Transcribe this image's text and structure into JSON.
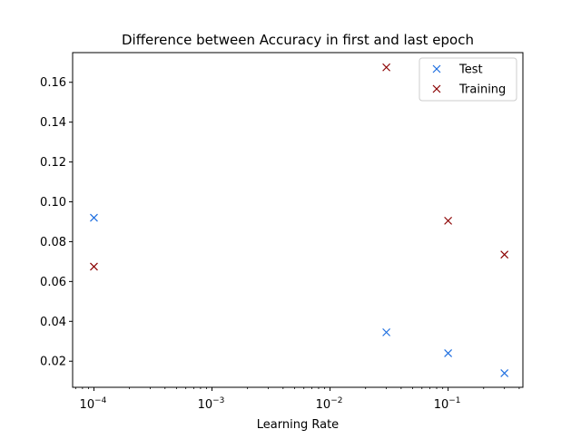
{
  "chart_data": {
    "type": "scatter",
    "title": "Difference between Accuracy in first and last epoch",
    "xlabel": "Learning Rate",
    "ylabel": "",
    "x_scale": "log",
    "xlim": [
      6.6e-05,
      0.43
    ],
    "ylim": [
      0.0069,
      0.1749
    ],
    "x_ticks": [
      {
        "value": 0.0001,
        "base": "10",
        "exp": "−4"
      },
      {
        "value": 0.001,
        "base": "10",
        "exp": "−3"
      },
      {
        "value": 0.01,
        "base": "10",
        "exp": "−2"
      },
      {
        "value": 0.1,
        "base": "10",
        "exp": "−1"
      }
    ],
    "y_ticks": [
      {
        "value": 0.02,
        "label": "0.02"
      },
      {
        "value": 0.04,
        "label": "0.04"
      },
      {
        "value": 0.06,
        "label": "0.06"
      },
      {
        "value": 0.08,
        "label": "0.08"
      },
      {
        "value": 0.1,
        "label": "0.10"
      },
      {
        "value": 0.12,
        "label": "0.12"
      },
      {
        "value": 0.14,
        "label": "0.14"
      },
      {
        "value": 0.16,
        "label": "0.16"
      }
    ],
    "grid": false,
    "legend_position": "top-right",
    "series": [
      {
        "name": "Test",
        "color": "#1f6fe0",
        "marker": "x",
        "points": [
          {
            "x": 0.0001,
            "y": 0.092
          },
          {
            "x": 0.03,
            "y": 0.0345
          },
          {
            "x": 0.1,
            "y": 0.024
          },
          {
            "x": 0.3,
            "y": 0.014
          }
        ]
      },
      {
        "name": "Training",
        "color": "#8b0000",
        "marker": "x",
        "points": [
          {
            "x": 0.0001,
            "y": 0.0675
          },
          {
            "x": 0.03,
            "y": 0.1675
          },
          {
            "x": 0.1,
            "y": 0.0905
          },
          {
            "x": 0.3,
            "y": 0.0735
          }
        ]
      }
    ]
  }
}
